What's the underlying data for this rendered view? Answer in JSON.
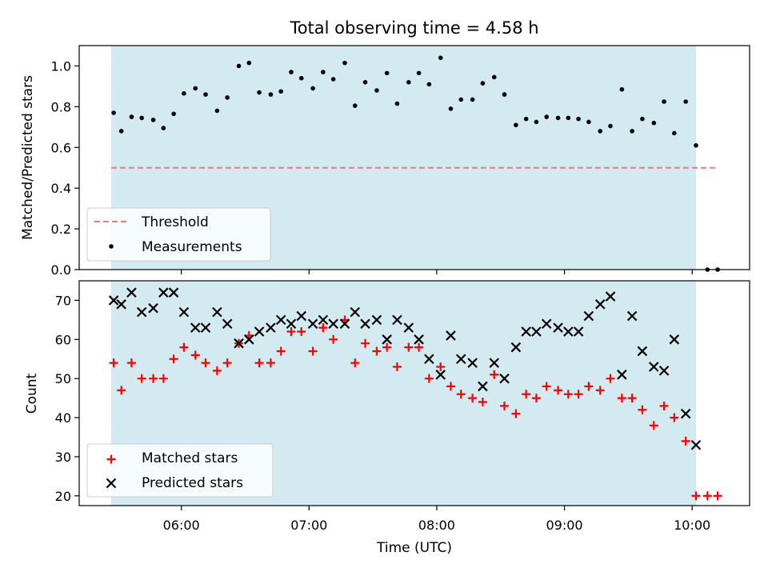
{
  "chart_data": {
    "type": "scatter",
    "title": "Total observing time = 4.58 h",
    "xlabel": "Time (UTC)",
    "x_unit": "hours UTC",
    "x_ticks": [
      6,
      7,
      8,
      9,
      10
    ],
    "x_tick_labels": [
      "06:00",
      "07:00",
      "08:00",
      "09:00",
      "10:00"
    ],
    "xlim": [
      5.2,
      10.45
    ],
    "shaded_interval": [
      5.45,
      10.03
    ],
    "colors": {
      "shade": "#d3eaf0",
      "threshold": "#f07a7a",
      "measurements": "#000000",
      "matched": "#ff0000",
      "predicted": "#000000"
    },
    "panels": [
      {
        "ylabel": "Matched/Predicted stars",
        "ylim": [
          0,
          1.1
        ],
        "y_ticks": [
          0.0,
          0.2,
          0.4,
          0.6,
          0.8,
          1.0
        ],
        "y_tick_labels": [
          "0.0",
          "0.2",
          "0.4",
          "0.6",
          "0.8",
          "1.0"
        ],
        "legend_position": "lower-left",
        "series": [
          {
            "name": "Threshold",
            "kind": "line",
            "style": "dashed",
            "x": [
              5.45,
              10.18
            ],
            "y": [
              0.5,
              0.5
            ]
          },
          {
            "name": "Measurements",
            "kind": "scatter",
            "marker": "dot",
            "x": [
              5.47,
              5.53,
              5.61,
              5.69,
              5.78,
              5.86,
              5.94,
              6.02,
              6.11,
              6.19,
              6.28,
              6.36,
              6.45,
              6.53,
              6.61,
              6.7,
              6.78,
              6.86,
              6.94,
              7.03,
              7.11,
              7.19,
              7.28,
              7.36,
              7.44,
              7.53,
              7.61,
              7.69,
              7.78,
              7.86,
              7.94,
              8.03,
              8.11,
              8.19,
              8.28,
              8.36,
              8.45,
              8.53,
              8.62,
              8.7,
              8.78,
              8.86,
              8.95,
              9.03,
              9.11,
              9.19,
              9.28,
              9.36,
              9.45,
              9.53,
              9.61,
              9.7,
              9.78,
              9.86,
              9.95,
              10.03,
              10.12,
              10.2
            ],
            "y": [
              0.77,
              0.68,
              0.75,
              0.745,
              0.735,
              0.695,
              0.765,
              0.865,
              0.89,
              0.86,
              0.78,
              0.845,
              1.0,
              1.015,
              0.87,
              0.86,
              0.875,
              0.97,
              0.94,
              0.89,
              0.97,
              0.935,
              1.015,
              0.805,
              0.92,
              0.88,
              0.965,
              0.815,
              0.92,
              0.965,
              0.91,
              1.04,
              0.79,
              0.835,
              0.835,
              0.915,
              0.945,
              0.86,
              0.71,
              0.74,
              0.725,
              0.75,
              0.745,
              0.745,
              0.74,
              0.725,
              0.68,
              0.705,
              0.885,
              0.68,
              0.74,
              0.72,
              0.825,
              0.67,
              0.825,
              0.61,
              0.0,
              0.0
            ]
          }
        ]
      },
      {
        "ylabel": "Count",
        "ylim": [
          17.5,
          75
        ],
        "y_ticks": [
          20,
          30,
          40,
          50,
          60,
          70
        ],
        "y_tick_labels": [
          "20",
          "30",
          "40",
          "50",
          "60",
          "70"
        ],
        "legend_position": "lower-left",
        "series": [
          {
            "name": "Matched stars",
            "kind": "scatter",
            "marker": "plus",
            "x": [
              5.47,
              5.53,
              5.61,
              5.69,
              5.78,
              5.86,
              5.94,
              6.02,
              6.11,
              6.19,
              6.28,
              6.36,
              6.45,
              6.53,
              6.61,
              6.7,
              6.78,
              6.86,
              6.94,
              7.03,
              7.11,
              7.19,
              7.28,
              7.36,
              7.44,
              7.53,
              7.61,
              7.69,
              7.78,
              7.86,
              7.94,
              8.03,
              8.11,
              8.19,
              8.28,
              8.36,
              8.45,
              8.53,
              8.62,
              8.7,
              8.78,
              8.86,
              8.95,
              9.03,
              9.11,
              9.19,
              9.28,
              9.36,
              9.45,
              9.53,
              9.61,
              9.7,
              9.78,
              9.86,
              9.95,
              10.03,
              10.12,
              10.2
            ],
            "y": [
              54,
              47,
              54,
              50,
              50,
              50,
              55,
              58,
              56,
              54,
              52,
              54,
              59,
              61,
              54,
              54,
              57,
              62,
              62,
              57,
              63,
              60,
              65,
              54,
              59,
              57,
              58,
              53,
              58,
              58,
              50,
              53,
              48,
              46,
              45,
              44,
              51,
              43,
              41,
              46,
              45,
              48,
              47,
              46,
              46,
              48,
              47,
              50,
              45,
              45,
              42,
              38,
              43,
              40,
              34,
              20,
              20,
              20
            ]
          },
          {
            "name": "Predicted stars",
            "kind": "scatter",
            "marker": "x",
            "x": [
              5.47,
              5.53,
              5.61,
              5.69,
              5.78,
              5.86,
              5.94,
              6.02,
              6.11,
              6.19,
              6.28,
              6.36,
              6.45,
              6.53,
              6.61,
              6.7,
              6.78,
              6.86,
              6.94,
              7.03,
              7.11,
              7.19,
              7.28,
              7.36,
              7.44,
              7.53,
              7.61,
              7.69,
              7.78,
              7.86,
              7.94,
              8.03,
              8.11,
              8.19,
              8.28,
              8.36,
              8.45,
              8.53,
              8.62,
              8.7,
              8.78,
              8.86,
              8.95,
              9.03,
              9.11,
              9.19,
              9.28,
              9.36,
              9.45,
              9.53,
              9.61,
              9.7,
              9.78,
              9.86,
              9.95,
              10.03
            ],
            "y": [
              70,
              69,
              72,
              67,
              68,
              72,
              72,
              67,
              63,
              63,
              67,
              64,
              59,
              60,
              62,
              63,
              65,
              64,
              66,
              64,
              65,
              64,
              64,
              67,
              64,
              65,
              60,
              65,
              63,
              60,
              55,
              51,
              61,
              55,
              54,
              48,
              54,
              50,
              58,
              62,
              62,
              64,
              63,
              62,
              62,
              66,
              69,
              71,
              51,
              66,
              57,
              53,
              52,
              60,
              41,
              33
            ]
          }
        ]
      }
    ]
  }
}
